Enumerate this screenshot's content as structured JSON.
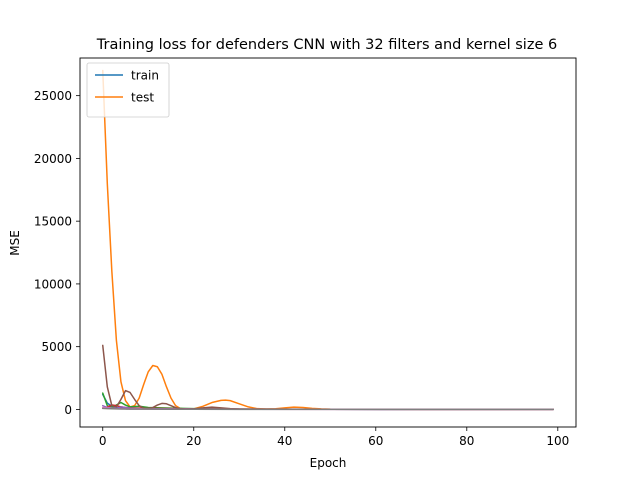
{
  "chart_data": {
    "type": "line",
    "title": "Training loss for defenders CNN with 32 filters and kernel size 6",
    "xlabel": "Epoch",
    "ylabel": "MSE",
    "xlim": [
      -5,
      104
    ],
    "ylim": [
      -1400,
      28000
    ],
    "x_ticks": [
      0,
      20,
      40,
      60,
      80,
      100
    ],
    "y_ticks": [
      0,
      5000,
      10000,
      15000,
      20000,
      25000
    ],
    "grid": false,
    "legend": {
      "placement": "top-left",
      "entries": [
        "train",
        "test"
      ]
    },
    "series": [
      {
        "name": "train",
        "color": "#1f77b4",
        "x": [
          0,
          1,
          2,
          3,
          4,
          5,
          6,
          8,
          10,
          15,
          20,
          30,
          50,
          99
        ],
        "y": [
          1200,
          500,
          250,
          150,
          100,
          80,
          60,
          50,
          40,
          30,
          25,
          15,
          10,
          5
        ]
      },
      {
        "name": "test",
        "color": "#ff7f0e",
        "x": [
          0,
          1,
          2,
          3,
          4,
          5,
          6,
          7,
          8,
          9,
          10,
          11,
          12,
          13,
          14,
          15,
          16,
          17,
          18,
          19,
          20,
          22,
          24,
          26,
          27,
          28,
          30,
          32,
          34,
          36,
          38,
          40,
          42,
          44,
          46,
          48,
          50,
          60,
          70,
          80,
          90,
          99
        ],
        "y": [
          27000,
          18000,
          11000,
          5500,
          2200,
          700,
          200,
          300,
          900,
          2000,
          3000,
          3500,
          3400,
          2800,
          1800,
          900,
          300,
          80,
          30,
          20,
          50,
          250,
          550,
          720,
          740,
          700,
          450,
          200,
          60,
          30,
          50,
          120,
          180,
          150,
          80,
          40,
          20,
          10,
          8,
          6,
          5,
          5
        ]
      },
      {
        "color": "#2ca02c",
        "x": [
          0,
          1,
          2,
          3,
          4,
          5,
          6,
          8,
          10,
          15,
          20,
          30,
          50,
          99
        ],
        "y": [
          1300,
          300,
          150,
          350,
          550,
          350,
          200,
          250,
          150,
          100,
          60,
          30,
          15,
          10
        ]
      },
      {
        "color": "#d62728",
        "x": [
          0,
          1,
          2,
          3,
          4,
          5,
          6,
          8,
          10,
          15,
          20,
          30,
          50,
          99
        ],
        "y": [
          100,
          200,
          350,
          300,
          200,
          150,
          120,
          100,
          80,
          60,
          40,
          25,
          15,
          10
        ]
      },
      {
        "color": "#9467bd",
        "x": [
          0,
          1,
          2,
          3,
          4,
          5,
          6,
          8,
          10,
          15,
          20,
          30,
          50,
          99
        ],
        "y": [
          300,
          150,
          100,
          80,
          200,
          150,
          100,
          60,
          50,
          40,
          30,
          20,
          10,
          5
        ]
      },
      {
        "color": "#8c564b",
        "x": [
          0,
          1,
          2,
          3,
          4,
          5,
          6,
          7,
          8,
          9,
          10,
          11,
          12,
          13,
          14,
          15,
          16,
          17,
          18,
          19,
          20,
          22,
          24,
          26,
          28,
          30,
          35,
          40,
          50,
          60,
          80,
          99
        ],
        "y": [
          5100,
          1800,
          300,
          200,
          800,
          1500,
          1350,
          800,
          300,
          100,
          80,
          150,
          350,
          480,
          450,
          300,
          150,
          60,
          30,
          20,
          40,
          120,
          180,
          120,
          60,
          30,
          20,
          15,
          10,
          8,
          6,
          5
        ]
      },
      {
        "color": "#e377c2",
        "x": [
          0,
          1,
          2,
          3,
          4,
          5,
          6,
          8,
          10,
          15,
          20,
          30,
          50,
          99
        ],
        "y": [
          150,
          100,
          80,
          60,
          50,
          40,
          35,
          30,
          25,
          20,
          15,
          10,
          8,
          5
        ]
      },
      {
        "color": "#7f7f7f",
        "x": [
          0,
          1,
          2,
          3,
          4,
          5,
          6,
          8,
          10,
          15,
          20,
          30,
          50,
          99
        ],
        "y": [
          80,
          60,
          50,
          40,
          35,
          30,
          28,
          25,
          20,
          15,
          12,
          8,
          5,
          3
        ]
      }
    ]
  }
}
